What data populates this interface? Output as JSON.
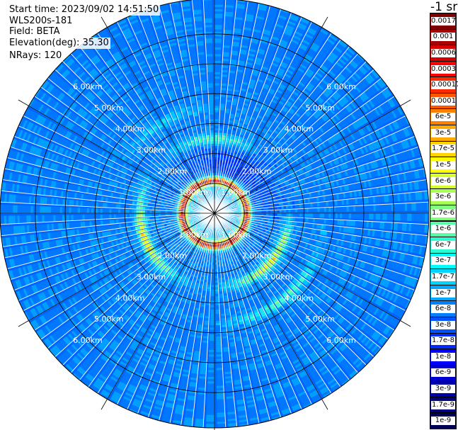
{
  "header": {
    "start_time": "Start time: 2023/09/02 14:51:50",
    "instrument": "WLS200s-181",
    "field": "Field: BETA",
    "elevation": "Elevation(deg): 35.30",
    "nrays": "NRays: 120"
  },
  "colorbar": {
    "unit_label": "-1 sr",
    "labels": [
      "0.0017",
      "0.001",
      "0.0006",
      "0.0003",
      "0.00017",
      "0.0001",
      "6e-5",
      "3e-5",
      "1.7e-5",
      "1e-5",
      "6e-6",
      "3e-6",
      "1.7e-6",
      "1e-6",
      "6e-7",
      "3e-7",
      "1.7e-7",
      "1e-7",
      "6e-8",
      "3e-8",
      "1.7e-8",
      "1e-8",
      "6e-9",
      "3e-9",
      "1.7e-9",
      "1e-9"
    ],
    "colors": [
      "#7f0000",
      "#a80000",
      "#d40000",
      "#ff0000",
      "#ff2a00",
      "#ff5400",
      "#ff7f00",
      "#ffa800",
      "#ffd400",
      "#ffff00",
      "#d4ff2a",
      "#a8ff54",
      "#7fff7f",
      "#54ffa8",
      "#2affd4",
      "#00ffff",
      "#00d4ff",
      "#00a8ff",
      "#007fff",
      "#0054ff",
      "#002aff",
      "#0000ff",
      "#0000d4",
      "#0000a8",
      "#00007f",
      "#000055"
    ]
  },
  "chart_data": {
    "type": "heatmap",
    "projection": "polar PPI",
    "field": "BETA",
    "n_rays": 120,
    "range_rings_km": [
      1,
      2,
      3,
      4,
      5,
      6
    ],
    "range_labels": [
      "1.00km",
      "2.00km",
      "3.00km",
      "4.00km",
      "5.00km",
      "6.00km"
    ],
    "features": [
      {
        "name": "near-field high backscatter ring",
        "range_km": [
          0.9,
          1.2
        ],
        "level": "1e-4 to 1e-3"
      },
      {
        "name": "broken aerosol layer ring",
        "range_km": [
          2.2,
          2.6
        ],
        "level": "1e-6 to 1e-5"
      },
      {
        "name": "outer arc south-east",
        "range_km": [
          3.5,
          3.8
        ],
        "level": "1e-7 to 1e-6"
      },
      {
        "name": "background",
        "level": "3e-9 to 1e-7"
      }
    ],
    "grid": true
  }
}
